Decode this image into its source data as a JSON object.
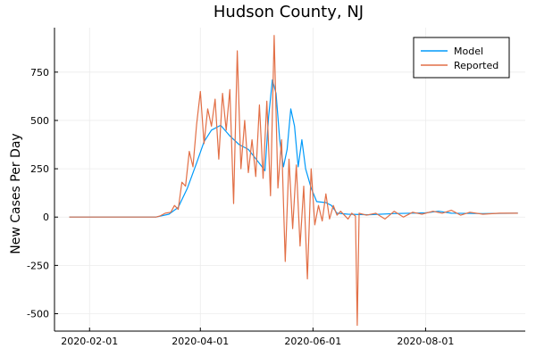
{
  "chart_data": {
    "type": "line",
    "title": "Hudson County, NJ",
    "xlabel": "",
    "ylabel": "New Cases Per Day",
    "x_axis": {
      "type": "date",
      "range": [
        "2020-01-13",
        "2020-09-24"
      ],
      "ticks": [
        "2020-02-01",
        "2020-04-01",
        "2020-06-01",
        "2020-08-01"
      ]
    },
    "y_axis": {
      "range": [
        -590,
        980
      ],
      "ticks": [
        -500,
        -250,
        0,
        250,
        500,
        750
      ],
      "tick_labels": [
        "-500",
        "-250",
        "0",
        "250",
        "500",
        "750"
      ]
    },
    "grid": true,
    "legend": "top-right",
    "series": [
      {
        "name": "Model",
        "color": "#009AFA",
        "points": [
          [
            "2020-01-21",
            0
          ],
          [
            "2020-02-15",
            0
          ],
          [
            "2020-03-08",
            0
          ],
          [
            "2020-03-15",
            15
          ],
          [
            "2020-03-20",
            50
          ],
          [
            "2020-03-25",
            150
          ],
          [
            "2020-03-30",
            280
          ],
          [
            "2020-04-03",
            390
          ],
          [
            "2020-04-07",
            450
          ],
          [
            "2020-04-12",
            475
          ],
          [
            "2020-04-17",
            420
          ],
          [
            "2020-04-22",
            375
          ],
          [
            "2020-04-27",
            350
          ],
          [
            "2020-05-02",
            290
          ],
          [
            "2020-05-06",
            240
          ],
          [
            "2020-05-08",
            520
          ],
          [
            "2020-05-10",
            710
          ],
          [
            "2020-05-12",
            640
          ],
          [
            "2020-05-14",
            400
          ],
          [
            "2020-05-16",
            260
          ],
          [
            "2020-05-18",
            350
          ],
          [
            "2020-05-20",
            560
          ],
          [
            "2020-05-22",
            470
          ],
          [
            "2020-05-24",
            260
          ],
          [
            "2020-05-26",
            400
          ],
          [
            "2020-05-28",
            250
          ],
          [
            "2020-05-31",
            150
          ],
          [
            "2020-06-03",
            80
          ],
          [
            "2020-06-08",
            75
          ],
          [
            "2020-06-11",
            60
          ],
          [
            "2020-06-14",
            20
          ],
          [
            "2020-06-20",
            15
          ],
          [
            "2020-07-01",
            12
          ],
          [
            "2020-07-15",
            18
          ],
          [
            "2020-08-01",
            22
          ],
          [
            "2020-08-08",
            30
          ],
          [
            "2020-08-15",
            20
          ],
          [
            "2020-09-01",
            18
          ],
          [
            "2020-09-20",
            20
          ]
        ]
      },
      {
        "name": "Reported",
        "color": "#E26F46",
        "points": [
          [
            "2020-01-21",
            0
          ],
          [
            "2020-02-15",
            0
          ],
          [
            "2020-03-08",
            0
          ],
          [
            "2020-03-10",
            5
          ],
          [
            "2020-03-13",
            20
          ],
          [
            "2020-03-16",
            25
          ],
          [
            "2020-03-18",
            60
          ],
          [
            "2020-03-20",
            40
          ],
          [
            "2020-03-22",
            180
          ],
          [
            "2020-03-24",
            160
          ],
          [
            "2020-03-26",
            340
          ],
          [
            "2020-03-28",
            260
          ],
          [
            "2020-03-30",
            480
          ],
          [
            "2020-04-01",
            650
          ],
          [
            "2020-04-03",
            380
          ],
          [
            "2020-04-05",
            560
          ],
          [
            "2020-04-07",
            470
          ],
          [
            "2020-04-09",
            610
          ],
          [
            "2020-04-11",
            300
          ],
          [
            "2020-04-13",
            640
          ],
          [
            "2020-04-15",
            450
          ],
          [
            "2020-04-17",
            660
          ],
          [
            "2020-04-19",
            70
          ],
          [
            "2020-04-21",
            860
          ],
          [
            "2020-04-23",
            250
          ],
          [
            "2020-04-25",
            500
          ],
          [
            "2020-04-27",
            230
          ],
          [
            "2020-04-29",
            400
          ],
          [
            "2020-05-01",
            210
          ],
          [
            "2020-05-03",
            580
          ],
          [
            "2020-05-05",
            200
          ],
          [
            "2020-05-07",
            600
          ],
          [
            "2020-05-09",
            110
          ],
          [
            "2020-05-11",
            940
          ],
          [
            "2020-05-13",
            150
          ],
          [
            "2020-05-15",
            400
          ],
          [
            "2020-05-17",
            -230
          ],
          [
            "2020-05-19",
            300
          ],
          [
            "2020-05-21",
            -60
          ],
          [
            "2020-05-23",
            270
          ],
          [
            "2020-05-25",
            -150
          ],
          [
            "2020-05-27",
            160
          ],
          [
            "2020-05-29",
            -320
          ],
          [
            "2020-05-31",
            250
          ],
          [
            "2020-06-02",
            -40
          ],
          [
            "2020-06-04",
            60
          ],
          [
            "2020-06-06",
            -20
          ],
          [
            "2020-06-08",
            120
          ],
          [
            "2020-06-10",
            -10
          ],
          [
            "2020-06-12",
            60
          ],
          [
            "2020-06-14",
            10
          ],
          [
            "2020-06-16",
            30
          ],
          [
            "2020-06-20",
            -10
          ],
          [
            "2020-06-22",
            20
          ],
          [
            "2020-06-24",
            5
          ],
          [
            "2020-06-25",
            -560
          ],
          [
            "2020-06-26",
            20
          ],
          [
            "2020-06-30",
            10
          ],
          [
            "2020-07-05",
            20
          ],
          [
            "2020-07-10",
            -10
          ],
          [
            "2020-07-15",
            30
          ],
          [
            "2020-07-20",
            0
          ],
          [
            "2020-07-25",
            25
          ],
          [
            "2020-07-30",
            15
          ],
          [
            "2020-08-05",
            30
          ],
          [
            "2020-08-10",
            20
          ],
          [
            "2020-08-15",
            35
          ],
          [
            "2020-08-20",
            10
          ],
          [
            "2020-08-25",
            25
          ],
          [
            "2020-09-01",
            15
          ],
          [
            "2020-09-10",
            20
          ],
          [
            "2020-09-20",
            20
          ]
        ]
      }
    ]
  }
}
